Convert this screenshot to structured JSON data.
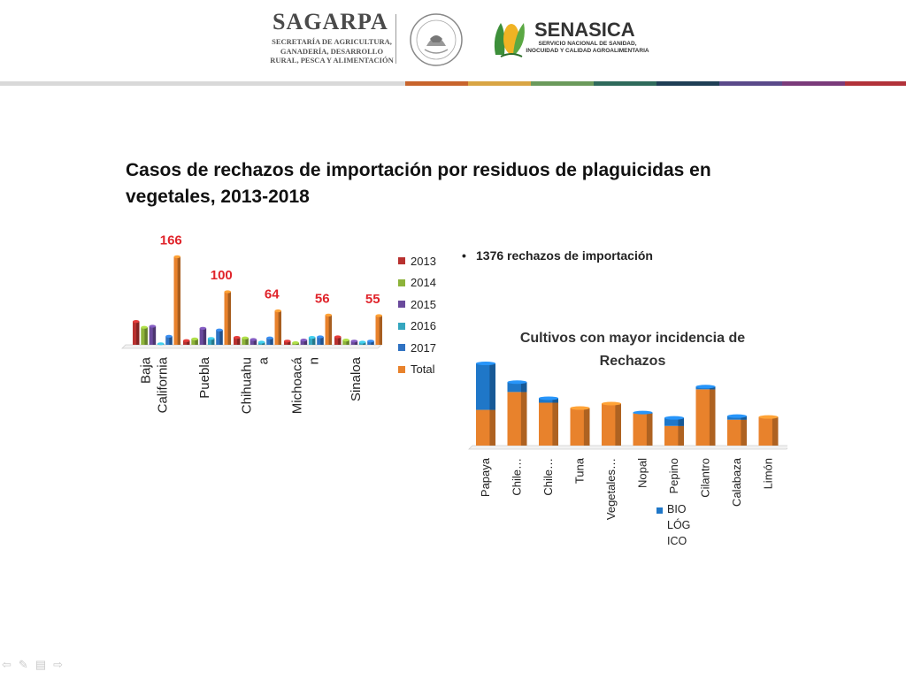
{
  "header": {
    "sagarpa_title": "SAGARPA",
    "sagarpa_subtitle": "SECRETARÍA DE AGRICULTURA, GANADERÍA, DESARROLLO RURAL, PESCA Y ALIMENTACIÓN",
    "seal_text": "ESTADOS UNIDOS MEXICANOS",
    "senasica_title": "SENASICA",
    "senasica_subtitle": "SERVICIO NACIONAL DE SANIDAD, INOCUIDAD Y CALIDAD AGROALIMENTARIA",
    "band_colors": [
      "#c8642c",
      "#d9a544",
      "#6b9a5b",
      "#2f6a5b",
      "#1f3f55",
      "#5a4a8a",
      "#7a3b7a",
      "#b2323a"
    ]
  },
  "title": "Casos de rechazos de importación por residuos de plaguicidas en vegetales, 2013-2018",
  "bullet": "1376 rechazos de importación",
  "chart_data": [
    {
      "type": "bar",
      "categories": [
        "Baja California",
        "Puebla",
        "Chihuahua",
        "Michoacán",
        "Sinaloa"
      ],
      "category_labels": [
        [
          "Baja",
          "California"
        ],
        [
          "Puebla"
        ],
        [
          "Chihuahu",
          "a"
        ],
        [
          "Michoacá",
          "n"
        ],
        [
          "Sinaloa"
        ]
      ],
      "series": [
        {
          "name": "2013",
          "color": "#b8312f",
          "values": [
            44,
            8,
            14,
            7,
            15
          ]
        },
        {
          "name": "2014",
          "color": "#8db33a",
          "values": [
            33,
            11,
            13,
            4,
            9
          ]
        },
        {
          "name": "2015",
          "color": "#6a4a9c",
          "values": [
            35,
            31,
            10,
            9,
            7
          ]
        },
        {
          "name": "2016",
          "color": "#35a6bf",
          "values": [
            2,
            12,
            5,
            14,
            5
          ]
        },
        {
          "name": "2017",
          "color": "#2f72c2",
          "values": [
            16,
            28,
            13,
            15,
            7
          ]
        },
        {
          "name": "Total",
          "color": "#e8822c",
          "values": [
            166,
            100,
            64,
            56,
            55
          ]
        }
      ],
      "total_labels": [
        "166",
        "100",
        "64",
        "56",
        "55"
      ],
      "total_label_color": "#e0242b",
      "ylim": [
        0,
        170
      ],
      "legend_position": "right",
      "grid": false
    },
    {
      "type": "bar",
      "stacked": true,
      "title": "Cultivos con mayor incidencia de Rechazos",
      "categories": [
        "Papaya",
        "Chile…",
        "Chile…",
        "Tuna",
        "Vegetales…",
        "Nopal",
        "Pepino",
        "Cilantro",
        "Calabaza",
        "Limón"
      ],
      "series": [
        {
          "name": "",
          "color": "#e8822c",
          "values": [
            40,
            60,
            48,
            42,
            47,
            36,
            22,
            63,
            29,
            32
          ]
        },
        {
          "name": "BIOLÓGICO",
          "color": "#1f77c8",
          "values": [
            52,
            11,
            5,
            0,
            0,
            1,
            9,
            3,
            4,
            0
          ]
        }
      ],
      "ylim": [
        0,
        95
      ],
      "legend_position": "bottom-right",
      "grid": false
    }
  ],
  "nav_icons": [
    "back-arrow-icon",
    "pen-icon",
    "menu-icon",
    "forward-arrow-icon"
  ]
}
